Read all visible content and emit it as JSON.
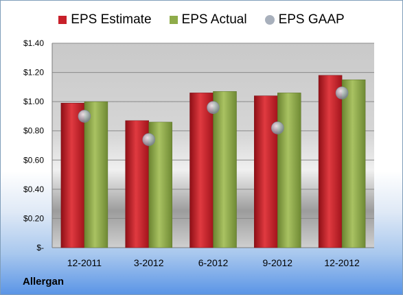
{
  "company_label": "Allergan",
  "legend": {
    "estimate_label": "EPS Estimate",
    "actual_label": "EPS Actual",
    "gaap_label": "EPS GAAP"
  },
  "colors": {
    "estimate": "#c8202a",
    "actual": "#8fac4a",
    "gaap": "#a8b0bc"
  },
  "chart_data": {
    "type": "bar",
    "categories": [
      "12-2011",
      "3-2012",
      "6-2012",
      "9-2012",
      "12-2012"
    ],
    "series": [
      {
        "name": "EPS Estimate",
        "values": [
          0.99,
          0.87,
          1.06,
          1.04,
          1.18
        ]
      },
      {
        "name": "EPS Actual",
        "values": [
          1.0,
          0.86,
          1.07,
          1.06,
          1.15
        ]
      },
      {
        "name": "EPS GAAP",
        "values": [
          0.9,
          0.74,
          0.96,
          0.82,
          1.06
        ],
        "marker": "circle"
      }
    ],
    "y_ticks": [
      0,
      0.2,
      0.4,
      0.6,
      0.8,
      1.0,
      1.2,
      1.4
    ],
    "y_tick_labels": [
      "$-",
      "$0.20",
      "$0.40",
      "$0.60",
      "$0.80",
      "$1.00",
      "$1.20",
      "$1.40"
    ],
    "ylim": [
      0,
      1.4
    ],
    "grid": true,
    "legend_position": "top"
  }
}
